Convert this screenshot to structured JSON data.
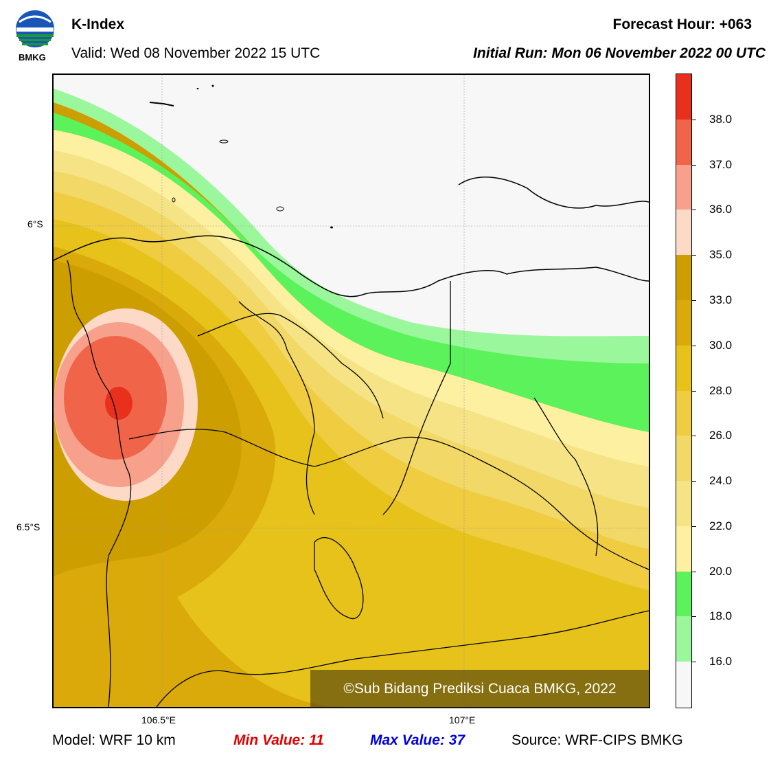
{
  "header": {
    "logo_text": "BMKG",
    "title": "K-Index",
    "valid": "Valid: Wed 08 November 2022 15 UTC",
    "forecast_hour": "Forecast Hour: +063",
    "initial_run": "Initial Run: Mon 06 November 2022 00 UTC"
  },
  "map": {
    "lat_labels": [
      "6°S",
      "6.5°S"
    ],
    "lon_labels": [
      "106.5°E",
      "107°E"
    ],
    "copyright": "©Sub Bidang Prediksi Cuaca BMKG, 2022"
  },
  "colorbar": {
    "ticks": [
      "38.0",
      "37.0",
      "36.0",
      "35.0",
      "33.0",
      "30.0",
      "28.0",
      "26.0",
      "24.0",
      "22.0",
      "20.0",
      "18.0",
      "16.0"
    ],
    "colors": [
      "#e8301c",
      "#f0654a",
      "#f7a08c",
      "#fdd9c8",
      "#cc9e00",
      "#d9aa0a",
      "#e6c21a",
      "#efcc40",
      "#f2d866",
      "#f5e385",
      "#fdf0a0",
      "#5cf25c",
      "#9bf79b",
      "#f7f7f7"
    ]
  },
  "footer": {
    "model": "Model: WRF 10 km",
    "min_value": "Min Value: 11",
    "max_value": "Max Value: 37",
    "source": "Source: WRF-CIPS BMKG",
    "min_color": "#e00000",
    "max_color": "#0000e0"
  }
}
